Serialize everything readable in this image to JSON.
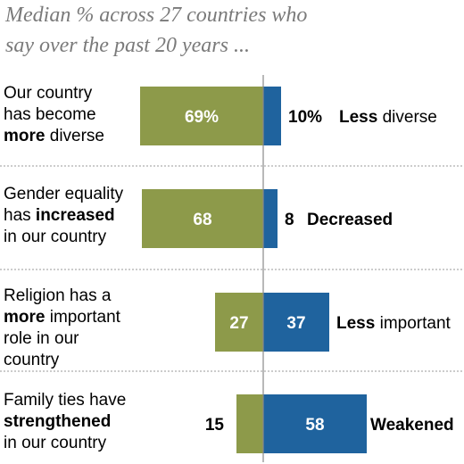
{
  "title_lines": [
    "Median % across 27 countries who",
    "say over the past 20 years ..."
  ],
  "rows": [
    {
      "label_parts": [
        "Our country",
        "has become",
        [
          "more",
          " diverse"
        ]
      ],
      "left_value": "69%",
      "right_value": "10%",
      "right_label": "Less diverse"
    },
    {
      "label_parts": [
        "Gender equality",
        [
          "has ",
          "increased"
        ],
        "in our country"
      ],
      "left_value": "68",
      "right_value": "8",
      "right_label": "Decreased"
    },
    {
      "label_parts": [
        "Religion has a",
        [
          "more",
          " important"
        ],
        "role in our country"
      ],
      "left_value": "27",
      "right_value": "37",
      "right_label": "Less important"
    },
    {
      "label_parts": [
        "Family ties have",
        [
          "strengthened",
          ""
        ],
        "in our country"
      ],
      "left_value": "15",
      "right_value": "58",
      "right_label": "Weakened"
    }
  ],
  "colors": {
    "positive": "#8d9a4a",
    "negative": "#1f639e",
    "title": "#7a7a7a"
  },
  "chart_data": {
    "type": "bar",
    "orientation": "diverging-horizontal",
    "categories": [
      "Our country has become more diverse",
      "Gender equality has increased in our country",
      "Religion has a more important role in our country",
      "Family ties have strengthened in our country"
    ],
    "series": [
      {
        "name": "",
        "side": "left",
        "color": "#8d9a4a",
        "values": [
          69,
          68,
          27,
          15
        ]
      },
      {
        "name": "",
        "side": "right",
        "color": "#1f639e",
        "values": [
          10,
          8,
          37,
          58
        ]
      }
    ],
    "right_category_labels": [
      "Less diverse",
      "Decreased",
      "Less important",
      "Weakened"
    ],
    "unit": "%"
  }
}
